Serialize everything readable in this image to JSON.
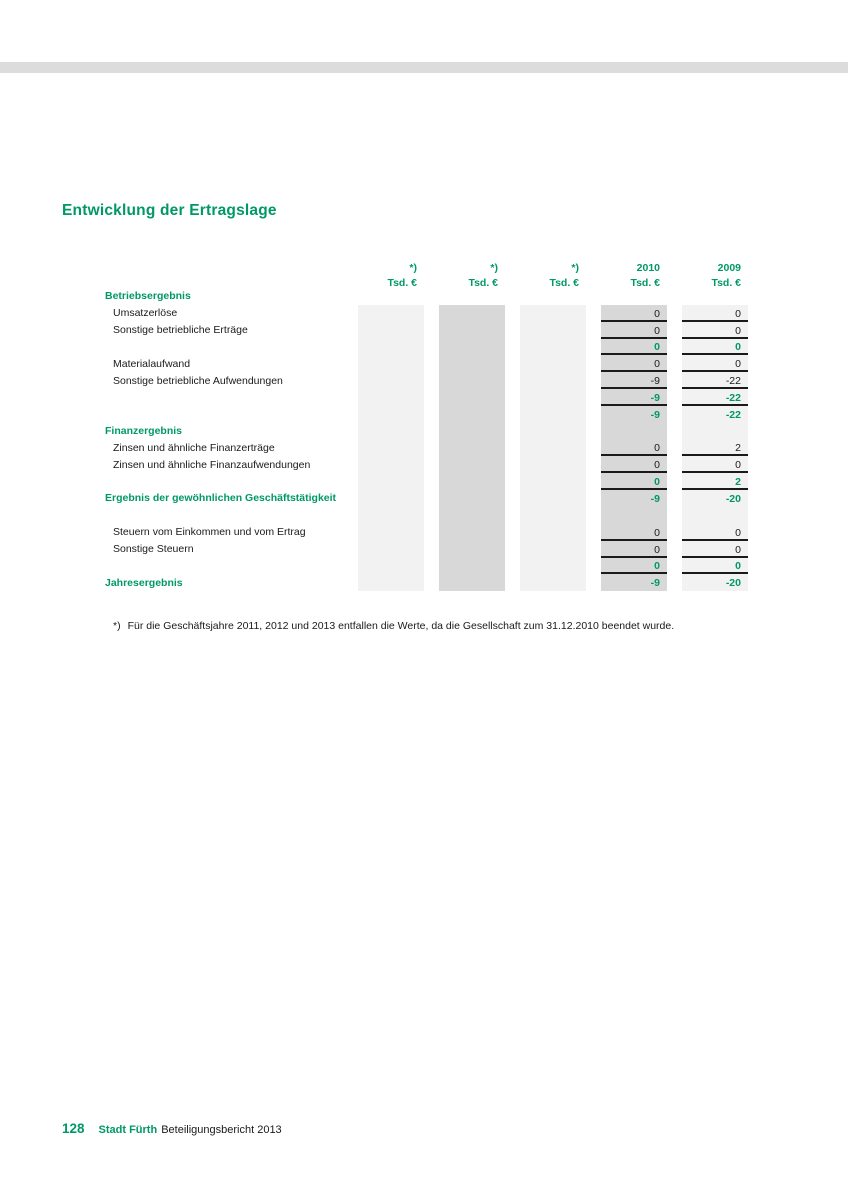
{
  "page": {
    "title": "Entwicklung der Ertragslage",
    "footnote": {
      "marker": "*)",
      "text": "Für die Geschäftsjahre 2011, 2012 und 2013 entfallen die Werte, da die Gesellschaft zum 31.12.2010 beendet wurde."
    },
    "footer": {
      "page_number": "128",
      "brand": "Stadt Fürth",
      "report_title": "Beteiligungsbericht 2013"
    }
  },
  "colors": {
    "accent_green": "#009966",
    "text_dark": "#1a1a1a",
    "column_light": "#f2f2f2",
    "column_dark": "#d8d8d8",
    "top_bar_gray": "#dcdcdc",
    "rule_black": "#1a1a1a"
  },
  "table": {
    "columns": [
      {
        "year": "*)",
        "unit": "Tsd. €",
        "shade": "light"
      },
      {
        "year": "*)",
        "unit": "Tsd. €",
        "shade": "dark"
      },
      {
        "year": "*)",
        "unit": "Tsd. €",
        "shade": "light"
      },
      {
        "year": "2010",
        "unit": "Tsd. €",
        "shade": "dark"
      },
      {
        "year": "2009",
        "unit": "Tsd. €",
        "shade": "light"
      }
    ],
    "rows": [
      {
        "label": "Betriebsergebnis",
        "label_style": "section",
        "values": [
          "",
          "",
          "",
          "",
          ""
        ],
        "value_style": "plain",
        "underline": false
      },
      {
        "label": "Umsatzerlöse",
        "label_style": "item",
        "values": [
          "",
          "",
          "",
          "0",
          "0"
        ],
        "value_style": "plain",
        "underline": true
      },
      {
        "label": "Sonstige betriebliche Erträge",
        "label_style": "item",
        "values": [
          "",
          "",
          "",
          "0",
          "0"
        ],
        "value_style": "plain",
        "underline": true
      },
      {
        "label": "",
        "label_style": "item",
        "values": [
          "",
          "",
          "",
          "0",
          "0"
        ],
        "value_style": "total",
        "underline": true
      },
      {
        "label": "Materialaufwand",
        "label_style": "item",
        "values": [
          "",
          "",
          "",
          "0",
          "0"
        ],
        "value_style": "plain",
        "underline": true
      },
      {
        "label": "Sonstige betriebliche Aufwendungen",
        "label_style": "item",
        "values": [
          "",
          "",
          "",
          "-9",
          "-22"
        ],
        "value_style": "plain",
        "underline": true
      },
      {
        "label": "",
        "label_style": "item",
        "values": [
          "",
          "",
          "",
          "-9",
          "-22"
        ],
        "value_style": "total",
        "underline": true
      },
      {
        "label": "",
        "label_style": "item",
        "values": [
          "",
          "",
          "",
          "-9",
          "-22"
        ],
        "value_style": "total",
        "underline": false
      },
      {
        "label": "Finanzergebnis",
        "label_style": "section",
        "values": [
          "",
          "",
          "",
          "",
          ""
        ],
        "value_style": "plain",
        "underline": false
      },
      {
        "label": "Zinsen und ähnliche Finanzerträge",
        "label_style": "item",
        "values": [
          "",
          "",
          "",
          "0",
          "2"
        ],
        "value_style": "plain",
        "underline": true
      },
      {
        "label": "Zinsen und ähnliche Finanzaufwendungen",
        "label_style": "item",
        "values": [
          "",
          "",
          "",
          "0",
          "0"
        ],
        "value_style": "plain",
        "underline": true
      },
      {
        "label": "",
        "label_style": "item",
        "values": [
          "",
          "",
          "",
          "0",
          "2"
        ],
        "value_style": "total",
        "underline": true
      },
      {
        "label": "Ergebnis der gewöhnlichen Geschäftstätigkeit",
        "label_style": "section",
        "values": [
          "",
          "",
          "",
          "-9",
          "-20"
        ],
        "value_style": "total",
        "underline": false
      },
      {
        "label": "",
        "label_style": "item",
        "values": [
          "",
          "",
          "",
          "",
          ""
        ],
        "value_style": "plain",
        "underline": false
      },
      {
        "label": "Steuern vom Einkommen und vom Ertrag",
        "label_style": "item",
        "values": [
          "",
          "",
          "",
          "0",
          "0"
        ],
        "value_style": "plain",
        "underline": true
      },
      {
        "label": "Sonstige Steuern",
        "label_style": "item",
        "values": [
          "",
          "",
          "",
          "0",
          "0"
        ],
        "value_style": "plain",
        "underline": true
      },
      {
        "label": "",
        "label_style": "item",
        "values": [
          "",
          "",
          "",
          "0",
          "0"
        ],
        "value_style": "total",
        "underline": true
      },
      {
        "label": "Jahresergebnis",
        "label_style": "section",
        "values": [
          "",
          "",
          "",
          "-9",
          "-20"
        ],
        "value_style": "total",
        "underline": false
      }
    ]
  }
}
